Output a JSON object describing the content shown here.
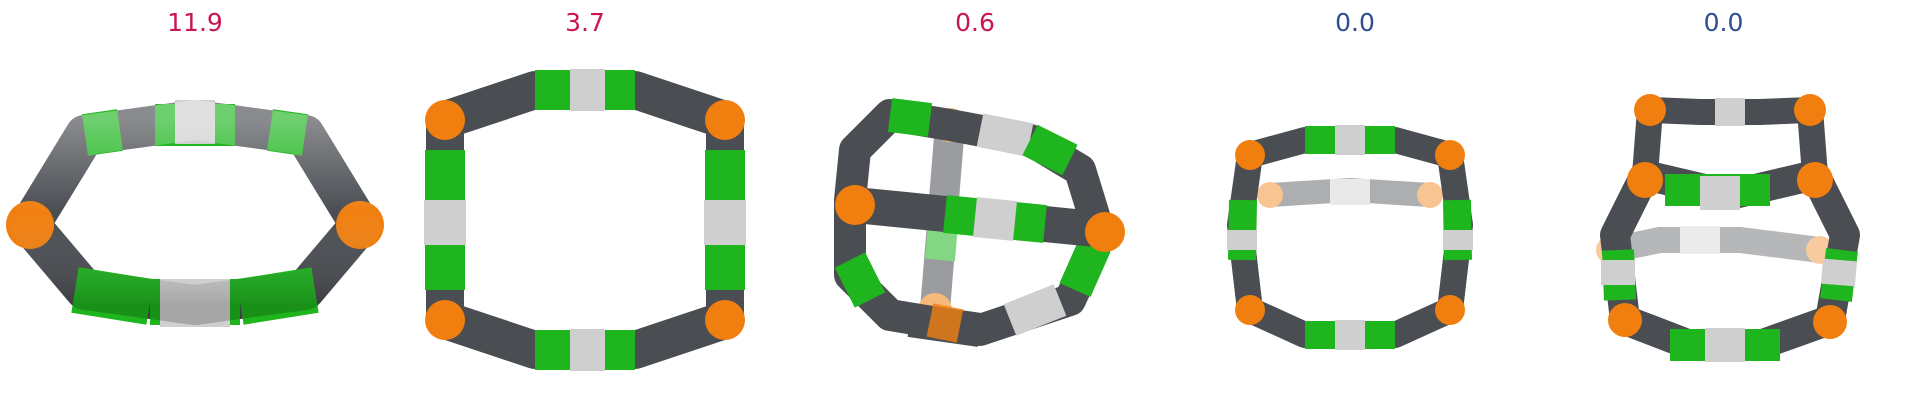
{
  "colors": {
    "value_high": "#c8174f",
    "value_zero": "#2f4e8f",
    "green": "#1fb51f",
    "orange": "#f07f10",
    "dark": "#4a4d52",
    "light": "#cfcfcf"
  },
  "panels": [
    {
      "value": "11.9",
      "shape": "ring-tilted"
    },
    {
      "value": "3.7",
      "shape": "ring-upright"
    },
    {
      "value": "0.6",
      "shape": "cage-bar"
    },
    {
      "value": "0.0",
      "shape": "prism-small"
    },
    {
      "value": "0.0",
      "shape": "prism-double"
    }
  ]
}
